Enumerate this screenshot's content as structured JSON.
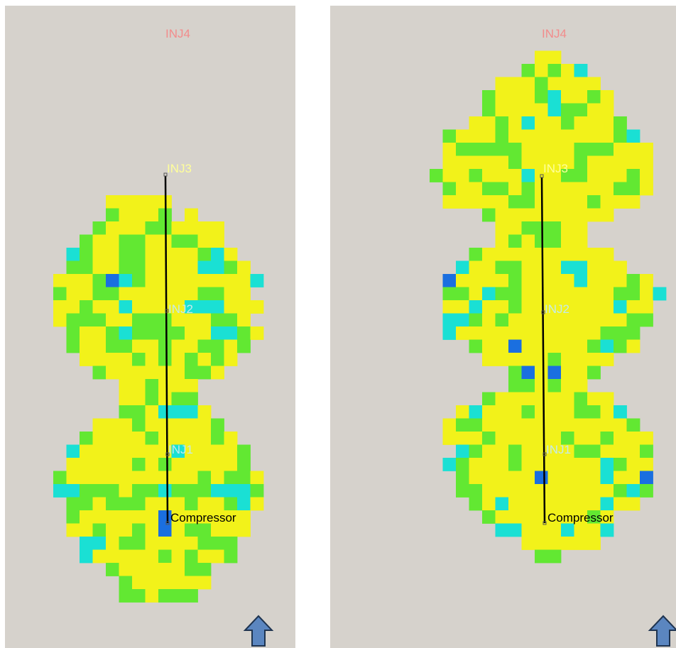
{
  "panels": [
    {
      "wells": {
        "inj4": "INJ4",
        "inj3": "INJ3",
        "inj2": "INJ2",
        "inj1": "INJ1",
        "compressor": "Compressor"
      },
      "label_colors": {
        "inj4": "#f28c8c",
        "inj3": "#ffff9a",
        "inj2": "#c4eaea",
        "inj1": "#c4eaea",
        "compressor": "#000000"
      },
      "grid_rows": [
        "",
        "",
        "",
        "",
        "",
        "",
        "",
        "",
        "",
        "",
        "",
        "",
        "",
        "",
        "....yyyyy",
        "....gyyyg.y",
        "...gyyyggyyyy",
        "..gyyggyyggyy",
        ".cgyyggyyyygcy",
        ".ggyyggyyyyccgy",
        "yyygbcgyyyyyyyyc",
        "gyyggyyyyyyggyy",
        "yygyycyyyycccyyy",
        "ygggyygggyyyggy",
        ".gyygcggggyyccgy",
        ".gyyggyygyyggyg",
        "..yyyygygygygy",
        "...gyyyyyyggy",
        ".....yygyyy",
        ".....yygygg",
        ".....ggycccy",
        "...yyygyyyyyg",
        "..gyyyygyyyygy",
        ".cyyyyyyycyyyyg",
        ".yyyyygygyyyyyg",
        "gyyyyyyyyyygyggy",
        "ccgggyggcgggcccg",
        ".ggygggyyygyygcy",
        ".gyyyyyybyyyyyy",
        ".yygyygybyggyyy",
        "..ccyggyyyyggg",
        "..cyyyyygygyyg",
        "....gyyyyygg",
        ".....gyyyyyy",
        ".....ggyggg",
        "",
        "",
        "",
        "",
        "",
        "",
        ""
      ],
      "palette": {
        "y": "#f2f21a",
        "g": "#62e832",
        "c": "#1ae0d4",
        "b": "#1a6fe0"
      }
    },
    {
      "wells": {
        "inj4": "INJ4",
        "inj3": "INJ3",
        "inj2": "INJ2",
        "inj1": "INJ1",
        "compressor": "Compressor"
      },
      "label_colors": {
        "inj4": "#f28c8c",
        "inj3": "#ffff9a",
        "inj2": "#c4eaea",
        "inj1": "#c4eaea",
        "compressor": "#000000"
      },
      "grid_rows": [
        "",
        "",
        "",
        "........yy",
        ".......gygyc",
        ".....yyygyyyy",
        "....gyyygcyygy",
        "....gyyyycggyy",
        "...yygycyygyyyg",
        ".gyyygyyyyyyyygc",
        ".ygggggyyyygggyyy",
        ".yyyyygyyyygyyyyy",
        "gyygyyycyyggyyygy",
        ".gyyggygyyyyyyggy",
        ".yyyyyggyyyygyyy",
        "....gyyyyyyyyy",
        ".....yygggyy",
        ".....ygyggyy",
        "...gyyyyyyyyyy",
        "..cyyggyyyccyyy",
        ".byyyygyyyycyyygy",
        ".ggycggyyyyyyyggyc",
        ".yycyygyyyyyyycyy",
        ".ccgygyyyyyyyyygg",
        ".cyyyyyyyyyyyggg",
        "...gyybyyyyygcgy",
        "....yyyyygyyyy",
        "......gbybyyg",
        "......ggygyy",
        "....gyyyyyygyy",
        "..ycyyygyyyggyc",
        ".yggyyyyyyyyyyyg",
        ".yyygyyyyygyygyyy",
        "..cgyygyyyyggyyyg",
        ".cgyyygyyyyyycgyy",
        "..gyyyyybyyyycyyb",
        "..ggyyyyyyyyyygcg",
        "...gycyyyyyyycyy",
        "....gyyyyyyygy",
        ".....ccyyycyyc",
        ".......yyyyyy",
        "........gg",
        "",
        "",
        ""
      ],
      "palette": {
        "y": "#f2f21a",
        "g": "#62e832",
        "c": "#1ae0d4",
        "b": "#1a6fe0"
      }
    }
  ]
}
